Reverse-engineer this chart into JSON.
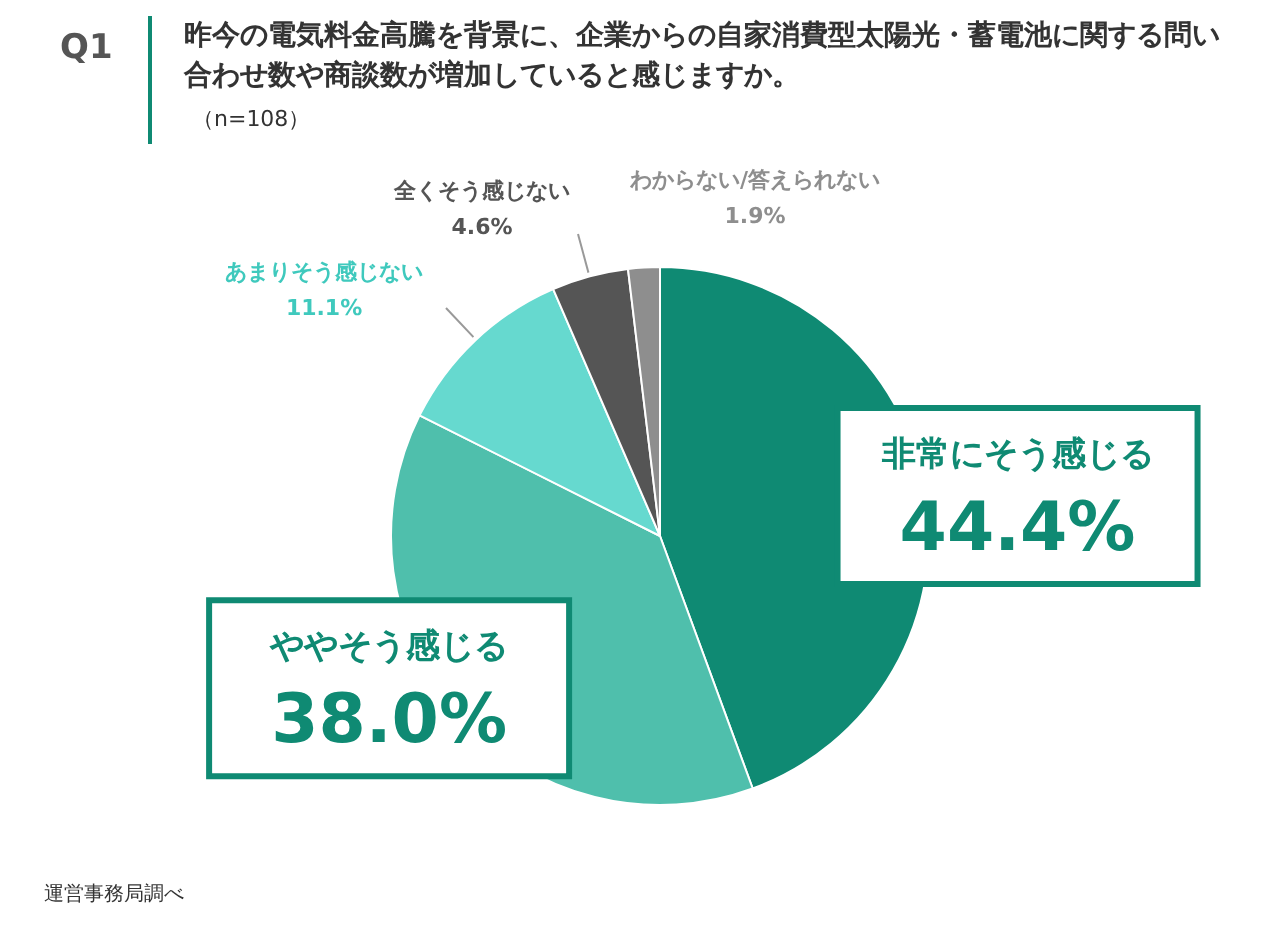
{
  "chart_data": {
    "type": "pie",
    "title": "昨今の電気料金高騰を背景に、企業からの自家消費型太陽光・蓄電池に関する問い合わせ数や商談数が増加していると感じますか。",
    "subtitle": "（n=108）",
    "categories": [
      "非常にそう感じる",
      "ややそう感じる",
      "あまりそう感じない",
      "全くそう感じない",
      "わからない/答えられない"
    ],
    "values": [
      44.4,
      38.0,
      11.1,
      4.6,
      1.9
    ],
    "colors": [
      "#0f8a73",
      "#4fbfac",
      "#66d9cf",
      "#555555",
      "#8e8e8e"
    ],
    "value_labels": [
      "44.4%",
      "38.0%",
      "11.1%",
      "4.6%",
      "1.9%"
    ],
    "annotations": [
      "Q1",
      "運営事務局調べ"
    ],
    "legend": false
  }
}
